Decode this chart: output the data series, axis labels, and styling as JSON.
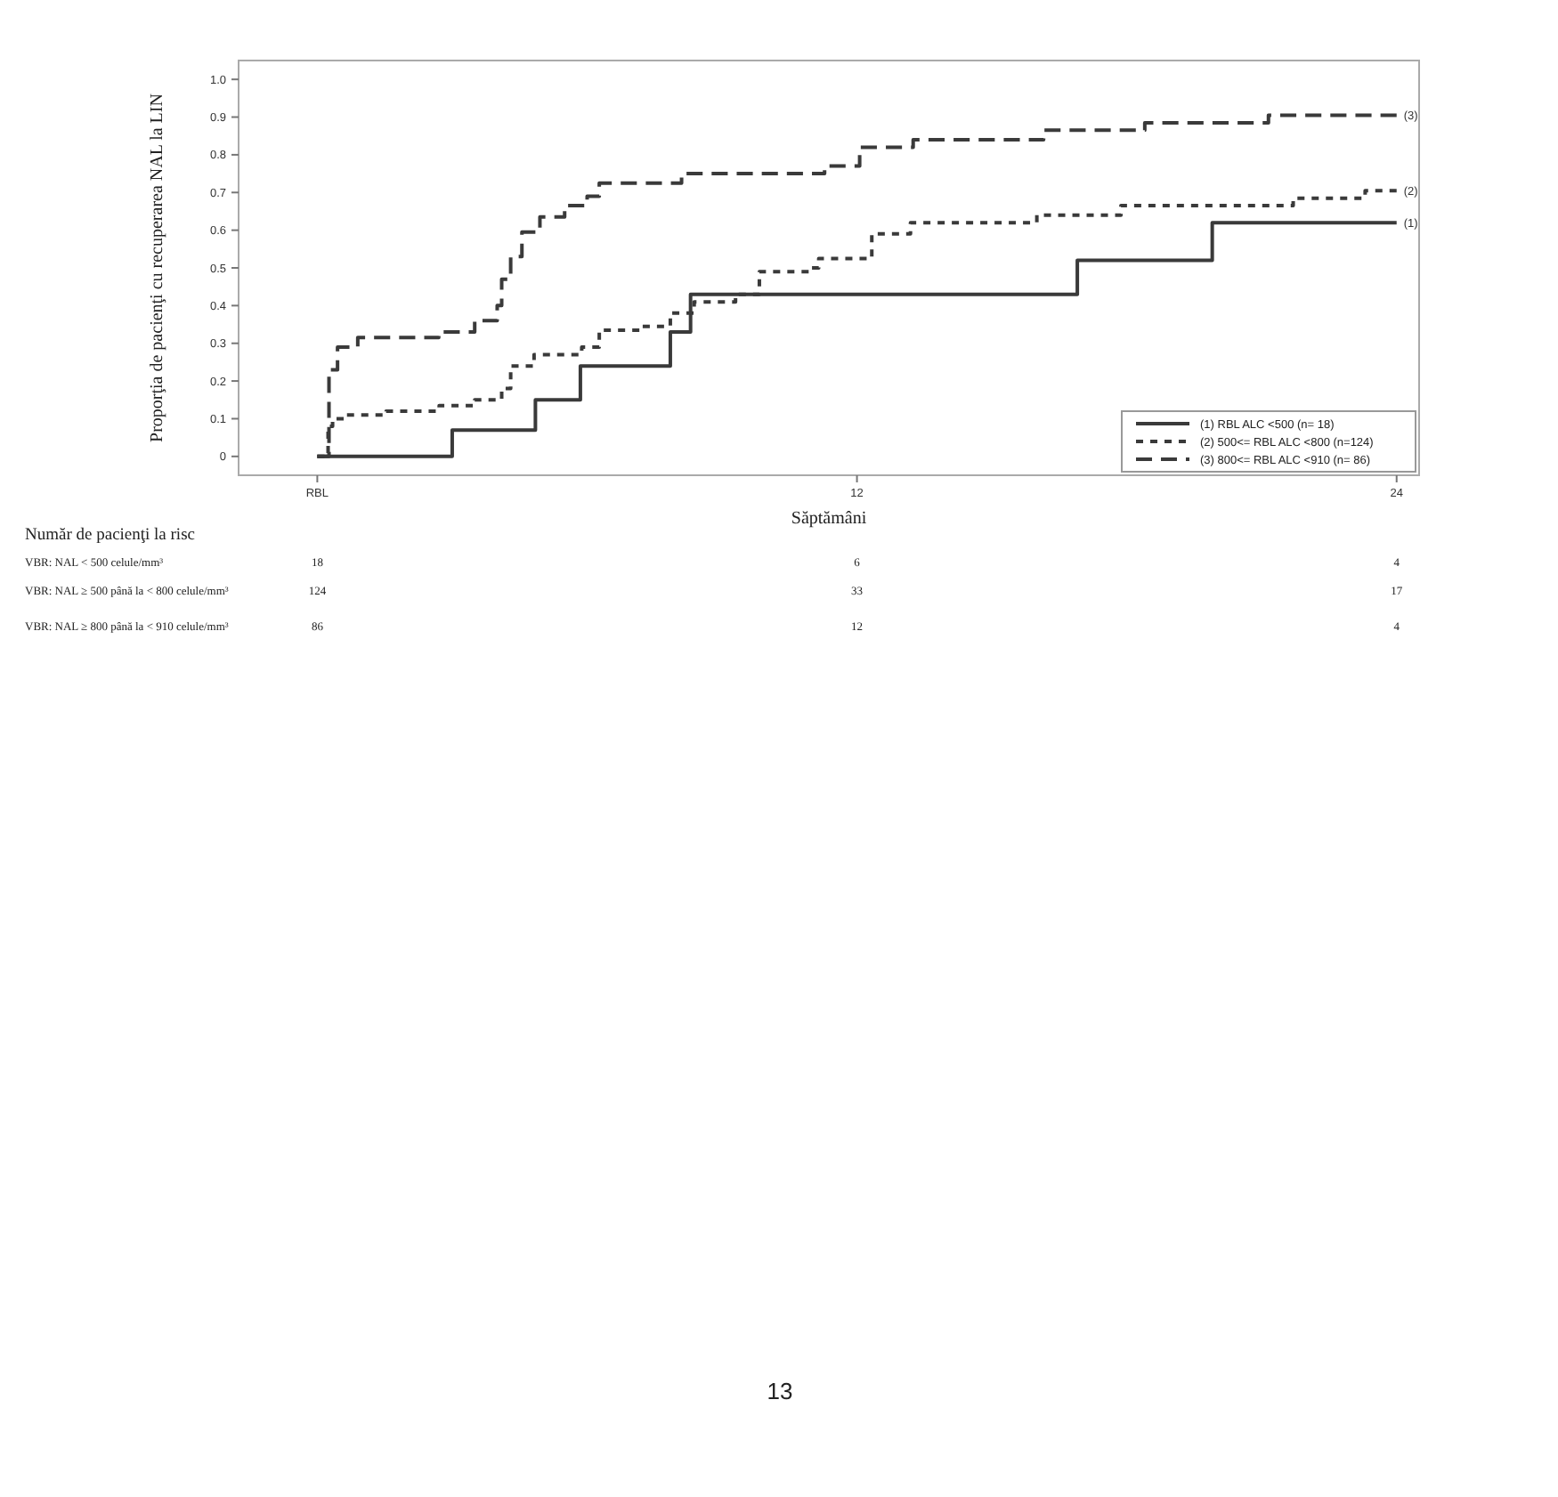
{
  "chart_data": {
    "type": "step",
    "xlabel": "Săptămâni",
    "ylabel": "Proporţia de pacienţi cu recuperarea NAL la LIN",
    "xlim": [
      -1.75,
      24.5
    ],
    "ylim": [
      -0.05,
      1.05
    ],
    "xticks": [
      {
        "value": 0,
        "label": "RBL"
      },
      12,
      24
    ],
    "yticks": [
      0,
      0.1,
      0.2,
      0.3,
      0.4,
      0.5,
      0.6,
      0.7,
      0.8,
      0.9,
      {
        "value": 1,
        "label": "1.0"
      }
    ],
    "grid": false,
    "legend": "bottom right",
    "series": [
      {
        "name": "(1) RBL ALC <500 (n= 18)",
        "color": "#3a3a3a",
        "line_style": "solid",
        "x": [
          0,
          3,
          4.85,
          5.85,
          7.85,
          8.3,
          16.9,
          19.9,
          24
        ],
        "values": [
          0,
          0.07,
          0.15,
          0.24,
          0.33,
          0.43,
          0.52,
          0.62,
          0.62
        ]
      },
      {
        "name": "(2) 500<= RBL ALC <800 (n=124)",
        "color": "#3a3a3a",
        "line_style": "dashed",
        "x": [
          0,
          0.24,
          0.34,
          0.61,
          1.53,
          2.71,
          3.5,
          4.1,
          4.3,
          4.82,
          5.88,
          6.27,
          7.19,
          7.85,
          8.38,
          9.3,
          9.83,
          11.0,
          11.15,
          12.33,
          13.19,
          16.0,
          17.87,
          21.7,
          23.3,
          24
        ],
        "values": [
          0,
          0.08,
          0.1,
          0.11,
          0.12,
          0.135,
          0.15,
          0.18,
          0.24,
          0.27,
          0.29,
          0.335,
          0.345,
          0.38,
          0.41,
          0.43,
          0.49,
          0.5,
          0.525,
          0.59,
          0.62,
          0.64,
          0.665,
          0.685,
          0.705,
          0.705
        ]
      },
      {
        "name": "(3) 800<= RBL ALC <910 (n= 86)",
        "color": "#3a3a3a",
        "line_style": "dashed",
        "x": [
          0,
          0.26,
          0.45,
          0.9,
          2.7,
          3.5,
          4.0,
          4.1,
          4.3,
          4.55,
          4.95,
          5.5,
          6.0,
          6.27,
          8.1,
          11.28,
          12.06,
          13.25,
          16.15,
          18.4,
          21.15,
          24
        ],
        "values": [
          0,
          0.23,
          0.29,
          0.315,
          0.33,
          0.36,
          0.4,
          0.47,
          0.53,
          0.595,
          0.635,
          0.665,
          0.69,
          0.725,
          0.75,
          0.77,
          0.82,
          0.84,
          0.865,
          0.885,
          0.905,
          0.905
        ]
      }
    ],
    "annotations": [
      "(1)",
      "(2)",
      "(3)",
      "Număr de pacienţi la risc",
      "VBR: NAL < 500 celule/mm³",
      "18",
      "6",
      "4",
      "VBR: NAL ≥ 500 până la < 800 celule/mm³",
      "124",
      "33",
      "17",
      "VBR: NAL ≥ 800 până la < 910 celule/mm³",
      "86",
      "12",
      "4",
      "13"
    ]
  }
}
